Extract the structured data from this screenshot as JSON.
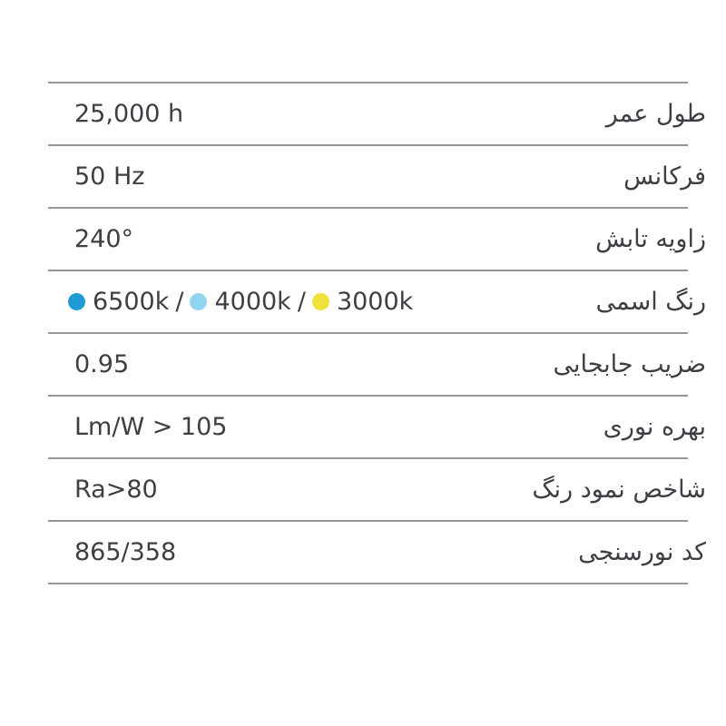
{
  "page": {
    "background": "#ffffff",
    "line_color": "#969696",
    "text_color": "#3c3f44"
  },
  "table": {
    "rows": [
      {
        "label": "طول عمر",
        "value": "25,000 h"
      },
      {
        "label": "فرکانس",
        "value": "50 Hz"
      },
      {
        "label": "زاویه تابش",
        "value": "240°"
      },
      {
        "label": "رنگ اسمی",
        "separator": "/",
        "options": [
          {
            "text": "6500k",
            "dot_color": "#1e9bd7"
          },
          {
            "text": "4000k",
            "dot_color": "#92d4f0"
          },
          {
            "text": "3000k",
            "dot_color": "#f0e23a"
          }
        ]
      },
      {
        "label": "ضریب جابجایی",
        "value": "0.95"
      },
      {
        "label": "بهره نوری",
        "value": "Lm/W > 105"
      },
      {
        "label": "شاخص نمود رنگ",
        "value": "Ra>80"
      },
      {
        "label": "کد نورسنجی",
        "value": "865/358"
      }
    ]
  }
}
